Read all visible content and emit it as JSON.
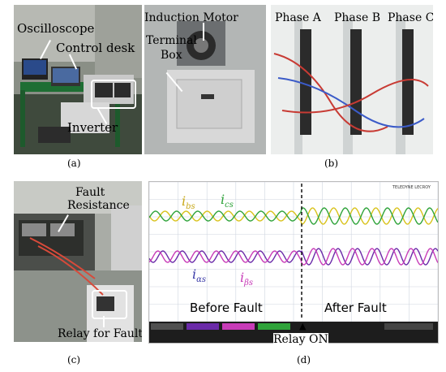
{
  "panel_a": {
    "labels": {
      "oscilloscope": "Oscilloscope",
      "control_desk": "Control desk",
      "inverter": "Inverter"
    },
    "caption": "(a)"
  },
  "panel_b": {
    "labels": {
      "induction_motor": "Induction Motor",
      "terminal": "Terminal",
      "box": "Box",
      "phase_a": "Phase A",
      "phase_b": "Phase B",
      "phase_c": "Phase C"
    },
    "caption": "(b)"
  },
  "panel_c": {
    "labels": {
      "fault": "Fault",
      "resistance": "Resistance",
      "relay_for_fault": "Relay for Fault"
    },
    "caption": "(c)"
  },
  "panel_d": {
    "brand": "TELEDYNE LECROY",
    "signals": {
      "i_bs": "i",
      "i_bs_sub": "bs",
      "i_cs": "i",
      "i_cs_sub": "cs",
      "i_as": "i",
      "i_as_sub": "αs",
      "i_bs2": "i",
      "i_bs2_sub": "βs"
    },
    "before_fault": "Before Fault",
    "after_fault": "After Fault",
    "relay_on": "Relay ON",
    "caption": "(d)",
    "colors": {
      "trace_yellow": "#d9c21a",
      "trace_green": "#2fa33a",
      "trace_purple": "#6a2aa8",
      "trace_magenta": "#c83cb8",
      "relay_line": "#111111"
    }
  }
}
